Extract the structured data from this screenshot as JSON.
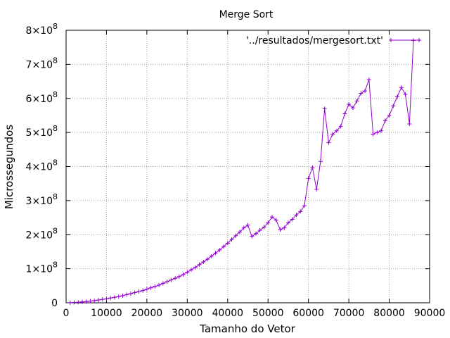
{
  "chart_data": {
    "type": "line",
    "title": "Merge Sort",
    "xlabel": "Tamanho do Vetor",
    "ylabel": "Microssegundos",
    "xlim": [
      0,
      90000
    ],
    "ylim": [
      0,
      800000000
    ],
    "grid": true,
    "legend_position": "top-right",
    "x_ticks": [
      {
        "value": 0,
        "label": "0"
      },
      {
        "value": 10000,
        "label": "10000"
      },
      {
        "value": 20000,
        "label": "20000"
      },
      {
        "value": 30000,
        "label": "30000"
      },
      {
        "value": 40000,
        "label": "40000"
      },
      {
        "value": 50000,
        "label": "50000"
      },
      {
        "value": 60000,
        "label": "60000"
      },
      {
        "value": 70000,
        "label": "70000"
      },
      {
        "value": 80000,
        "label": "80000"
      },
      {
        "value": 90000,
        "label": "90000"
      }
    ],
    "y_ticks": [
      {
        "value": 0,
        "mantissa": "0",
        "exponent": ""
      },
      {
        "value": 100000000,
        "mantissa": "1×10",
        "exponent": "8"
      },
      {
        "value": 200000000,
        "mantissa": "2×10",
        "exponent": "8"
      },
      {
        "value": 300000000,
        "mantissa": "3×10",
        "exponent": "8"
      },
      {
        "value": 400000000,
        "mantissa": "4×10",
        "exponent": "8"
      },
      {
        "value": 500000000,
        "mantissa": "5×10",
        "exponent": "8"
      },
      {
        "value": 600000000,
        "mantissa": "6×10",
        "exponent": "8"
      },
      {
        "value": 700000000,
        "mantissa": "7×10",
        "exponent": "8"
      },
      {
        "value": 800000000,
        "mantissa": "8×10",
        "exponent": "8"
      }
    ],
    "series": [
      {
        "name": "'../resultados/mergesort.txt'",
        "color": "#9400d3",
        "x": [
          1000,
          2000,
          3000,
          4000,
          5000,
          6000,
          7000,
          8000,
          9000,
          10000,
          11000,
          12000,
          13000,
          14000,
          15000,
          16000,
          17000,
          18000,
          19000,
          20000,
          21000,
          22000,
          23000,
          24000,
          25000,
          26000,
          27000,
          28000,
          29000,
          30000,
          31000,
          32000,
          33000,
          34000,
          35000,
          36000,
          37000,
          38000,
          39000,
          40000,
          41000,
          42000,
          43000,
          44000,
          45000,
          46000,
          47000,
          48000,
          49000,
          50000,
          51000,
          52000,
          53000,
          54000,
          55000,
          56000,
          57000,
          58000,
          59000,
          60000,
          61000,
          62000,
          63000,
          64000,
          65000,
          66000,
          67000,
          68000,
          69000,
          70000,
          71000,
          72000,
          73000,
          74000,
          75000,
          76000,
          77000,
          78000,
          79000,
          80000,
          81000,
          82000,
          83000,
          84000,
          85000,
          86000
        ],
        "y": [
          300000,
          1000000,
          1500000,
          2500000,
          3500000,
          5000000,
          6500000,
          8000000,
          10000000,
          12000000,
          14000000,
          16000000,
          18000000,
          21000000,
          24000000,
          27000000,
          30000000,
          33000000,
          36000000,
          40000000,
          44000000,
          48000000,
          52000000,
          57000000,
          62000000,
          67000000,
          72000000,
          77000000,
          83000000,
          90000000,
          97000000,
          104000000,
          112000000,
          120000000,
          128000000,
          137000000,
          146000000,
          155000000,
          165000000,
          175000000,
          186000000,
          197000000,
          208000000,
          220000000,
          228000000,
          195000000,
          203000000,
          213000000,
          222000000,
          235000000,
          252000000,
          243000000,
          215000000,
          220000000,
          235000000,
          245000000,
          258000000,
          268000000,
          285000000,
          365000000,
          397000000,
          333000000,
          415000000,
          570000000,
          470000000,
          495000000,
          505000000,
          518000000,
          555000000,
          583000000,
          572000000,
          592000000,
          615000000,
          622000000,
          655000000,
          495000000,
          500000000,
          505000000,
          535000000,
          550000000,
          578000000,
          605000000,
          632000000,
          612000000,
          525000000,
          770000000
        ]
      }
    ]
  }
}
